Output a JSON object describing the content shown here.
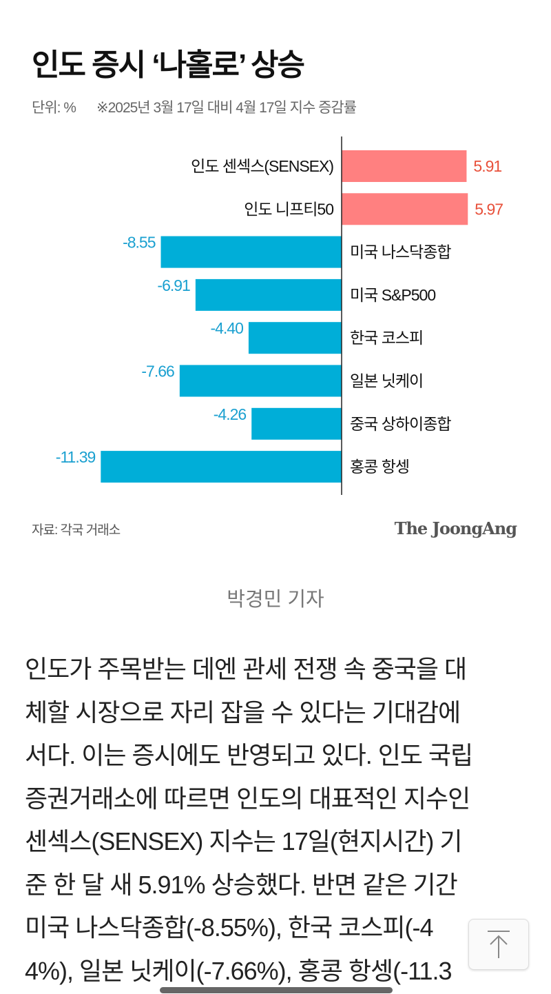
{
  "chart_data": {
    "type": "bar",
    "orientation": "horizontal",
    "title": "인도 증시 ‘나홀로’ 상승",
    "unit_label": "단위: %",
    "note": "※2025년 3월 17일 대비 4월 17일 지수 증감률",
    "categories": [
      "인도 센섹스(SENSEX)",
      "인도 니프티50",
      "미국 나스닥종합",
      "미국 S&P500",
      "한국 코스피",
      "일본 닛케이",
      "중국 상하이종합",
      "홍콩 항셍"
    ],
    "values": [
      5.91,
      5.97,
      -8.55,
      -6.91,
      -4.4,
      -7.66,
      -4.26,
      -11.39
    ],
    "labels": [
      "5.91",
      "5.97",
      "-8.55",
      "-6.91",
      "-4.40",
      "-7.66",
      "-4.26",
      "-11.39"
    ],
    "colors": {
      "positive": "#ff8080",
      "positive_label": "#e8503a",
      "negative": "#00aed8",
      "negative_label": "#1aa0d0"
    },
    "source": "자료: 각국 거래소",
    "logo": "The JoongAng"
  },
  "byline": "박경민 기자",
  "body_lines": [
    "인도가 주목받는 데엔 관세 전쟁 속 중국을 대",
    "체할 시장으로 자리 잡을 수 있다는 기대감에",
    "서다. 이는 증시에도 반영되고 있다. 인도 국립",
    "증권거래소에 따르면 인도의 대표적인 지수인",
    "센섹스(SENSEX) 지수는 17일(현지시간) 기",
    "준 한 달 새 5.91% 상승했다. 반면 같은 기간",
    "미국 나스닥종합(-8.55%), 한국 코스피(-4",
    "4%), 일본 닛케이(-7.66%), 홍콩 항셍(-11.3"
  ],
  "scroll_top_icon": "arrow-up-to-top-icon"
}
